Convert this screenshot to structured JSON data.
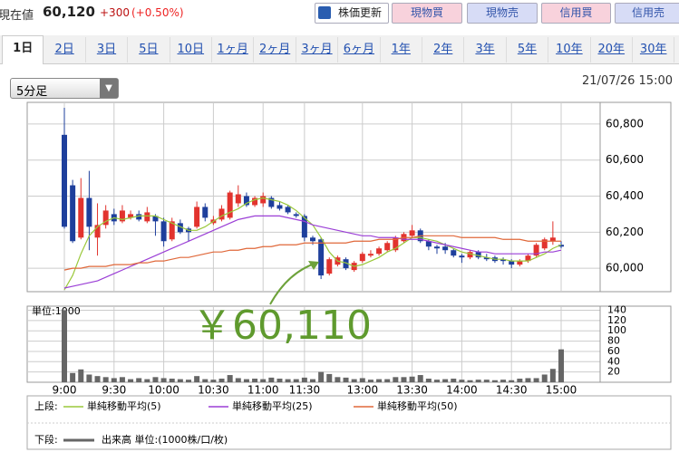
{
  "header": {
    "label": "現在値",
    "price": "60,120",
    "change": "+300",
    "change_pct": "(+0.50%)"
  },
  "buttons": [
    "株価更新",
    "現物買",
    "現物売",
    "信用買",
    "信用売"
  ],
  "tabs": [
    "1日",
    "2日",
    "3日",
    "5日",
    "10日",
    "1ヶ月",
    "2ヶ月",
    "3ヶ月",
    "6ヶ月",
    "1年",
    "2年",
    "3年",
    "5年",
    "10年",
    "20年",
    "30年"
  ],
  "period_selector": "5分足",
  "timestamp": "21/07/26 15:00",
  "legend_rows": [
    "上段:",
    "下段:"
  ],
  "chart_data": [
    {
      "type": "candlestick",
      "up_color": "#e2332e",
      "down_color": "#1e3f9c",
      "grid": true,
      "ylim": [
        59870,
        60920
      ],
      "yticks": [
        {
          "value": 60000,
          "label": "60,000"
        },
        {
          "value": 60200,
          "label": "60,200"
        },
        {
          "value": 60400,
          "label": "60,400"
        },
        {
          "value": 60600,
          "label": "60,600"
        },
        {
          "value": 60800,
          "label": "60,800"
        }
      ],
      "open": [
        60740,
        60460,
        60170,
        60390,
        60170,
        60240,
        60300,
        60260,
        60280,
        60300,
        60260,
        60290,
        60260,
        60160,
        60250,
        60220,
        60230,
        60340,
        60250,
        60270,
        60280,
        60360,
        60400,
        60350,
        60360,
        60390,
        60350,
        60340,
        60300,
        60290,
        60170,
        60160,
        59970,
        60020,
        60050,
        59990,
        60040,
        60070,
        60080,
        60100,
        60100,
        60150,
        60180,
        60210,
        60150,
        60120,
        60120,
        60100,
        60070,
        60060,
        60090,
        60060,
        60060,
        60050,
        60040,
        60020,
        60040,
        60070,
        60110,
        60150,
        60130
      ],
      "high": [
        60890,
        60490,
        60500,
        60540,
        60360,
        60350,
        60330,
        60350,
        60320,
        60320,
        60340,
        60300,
        60280,
        60280,
        60270,
        60230,
        60370,
        60360,
        60290,
        60350,
        60430,
        60460,
        60420,
        60400,
        60420,
        60400,
        60370,
        60350,
        60310,
        60300,
        60180,
        60170,
        60060,
        60070,
        60060,
        60040,
        60090,
        60100,
        60120,
        60150,
        60180,
        60200,
        60240,
        60220,
        60160,
        60130,
        60140,
        60110,
        60080,
        60100,
        60100,
        60080,
        60070,
        60060,
        60050,
        60050,
        60080,
        60140,
        60170,
        60260,
        60150
      ],
      "low": [
        60220,
        60140,
        60160,
        60100,
        60070,
        60220,
        60240,
        60250,
        60270,
        60260,
        60250,
        60180,
        60120,
        60150,
        60190,
        60150,
        60220,
        60260,
        60240,
        60260,
        60270,
        60340,
        60340,
        60340,
        60340,
        60330,
        60320,
        60300,
        60280,
        60150,
        60130,
        59940,
        59960,
        60010,
        59990,
        59980,
        60030,
        60060,
        60070,
        60090,
        60090,
        60140,
        60170,
        60140,
        60100,
        60080,
        60080,
        60060,
        60030,
        60050,
        60050,
        60040,
        60030,
        60020,
        60000,
        60010,
        60030,
        60060,
        60100,
        60130,
        60110
      ],
      "close": [
        60230,
        60150,
        60390,
        60230,
        60240,
        60320,
        60260,
        60320,
        60300,
        60270,
        60310,
        60260,
        60150,
        60260,
        60200,
        60200,
        60340,
        60280,
        60270,
        60330,
        60420,
        60410,
        60350,
        60390,
        60400,
        60340,
        60330,
        60310,
        60290,
        60170,
        60150,
        59960,
        60050,
        60060,
        60000,
        60030,
        60080,
        60080,
        60110,
        60140,
        60170,
        60190,
        60210,
        60150,
        60120,
        60110,
        60100,
        60070,
        60060,
        60090,
        60060,
        60050,
        60040,
        60040,
        60020,
        60040,
        60070,
        60130,
        60160,
        60170,
        60120
      ],
      "series": [
        {
          "name": "単純移動平均(5)",
          "color": "#9ac83a",
          "values": [
            59880,
            59960,
            60080,
            60180,
            60230,
            60260,
            60280,
            60270,
            60280,
            60290,
            60290,
            60290,
            60270,
            60250,
            60230,
            60210,
            60210,
            60230,
            60260,
            60290,
            60310,
            60330,
            60360,
            60380,
            60390,
            60380,
            60370,
            60350,
            60320,
            60280,
            60240,
            60170,
            60090,
            60040,
            60030,
            60010,
            60020,
            60040,
            60060,
            60090,
            60110,
            60140,
            60170,
            60170,
            60160,
            60150,
            60130,
            60110,
            60090,
            60080,
            60070,
            60060,
            60050,
            60050,
            60040,
            60040,
            60040,
            60060,
            60080,
            60110,
            60130
          ]
        },
        {
          "name": "単純移動平均(25)",
          "color": "#9b3fd6",
          "values": [
            59890,
            59900,
            59910,
            59920,
            59930,
            59950,
            59970,
            59990,
            60010,
            60030,
            60050,
            60070,
            60090,
            60110,
            60130,
            60150,
            60170,
            60190,
            60210,
            60230,
            60250,
            60270,
            60280,
            60290,
            60290,
            60290,
            60290,
            60280,
            60270,
            60260,
            60240,
            60230,
            60220,
            60210,
            60200,
            60190,
            60180,
            60180,
            60170,
            60170,
            60170,
            60160,
            60160,
            60160,
            60150,
            60140,
            60130,
            60120,
            60110,
            60100,
            60090,
            60090,
            60080,
            60080,
            60080,
            60080,
            60080,
            60080,
            60090,
            60090,
            60100
          ]
        },
        {
          "name": "単純移動平均(50)",
          "color": "#e0683a",
          "values": [
            59990,
            60000,
            60000,
            60010,
            60010,
            60010,
            60020,
            60020,
            60020,
            60030,
            60030,
            60040,
            60040,
            60050,
            60060,
            60060,
            60070,
            60080,
            60090,
            60090,
            60100,
            60100,
            60110,
            60110,
            60120,
            60120,
            60130,
            60130,
            60130,
            60140,
            60140,
            60140,
            60140,
            60140,
            60140,
            60150,
            60150,
            60150,
            60160,
            60160,
            60160,
            60170,
            60170,
            60180,
            60180,
            60180,
            60180,
            60180,
            60170,
            60170,
            60170,
            60170,
            60170,
            60160,
            60160,
            60160,
            60150,
            60150,
            60150,
            60150,
            60150
          ]
        }
      ],
      "annotation": "￥60,110"
    },
    {
      "type": "bar",
      "y_label": "単位:1000",
      "grid": true,
      "categories": [
        "9:00",
        null,
        null,
        null,
        null,
        null,
        "9:30",
        null,
        null,
        null,
        null,
        null,
        "10:00",
        null,
        null,
        null,
        null,
        null,
        "10:30",
        null,
        null,
        null,
        null,
        null,
        "11:00",
        null,
        null,
        null,
        null,
        "11:30",
        null,
        null,
        null,
        null,
        null,
        null,
        "13:00",
        null,
        null,
        null,
        null,
        null,
        "13:30",
        null,
        null,
        null,
        null,
        null,
        "14:00",
        null,
        null,
        null,
        null,
        null,
        "14:30",
        null,
        null,
        null,
        null,
        null,
        "15:00"
      ],
      "ylim": [
        0,
        148
      ],
      "yticks": [
        20,
        40,
        60,
        80,
        100,
        120,
        140
      ],
      "series": [
        {
          "name": "出来高 単位:(1000株/口/枚)",
          "color": "#666666",
          "values": [
            140,
            18,
            25,
            15,
            12,
            10,
            8,
            10,
            6,
            8,
            6,
            10,
            8,
            7,
            6,
            5,
            12,
            6,
            5,
            7,
            14,
            8,
            6,
            7,
            6,
            9,
            7,
            6,
            6,
            9,
            6,
            20,
            16,
            10,
            9,
            6,
            8,
            5,
            6,
            6,
            10,
            10,
            11,
            14,
            7,
            5,
            6,
            7,
            5,
            4,
            5,
            5,
            4,
            5,
            4,
            7,
            8,
            8,
            15,
            26,
            64
          ]
        }
      ]
    }
  ]
}
